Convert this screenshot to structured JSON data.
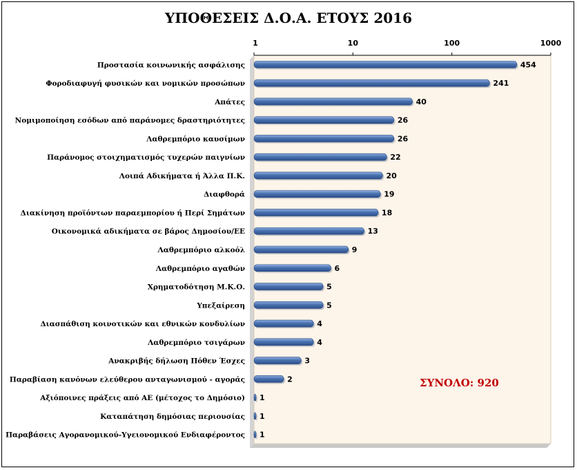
{
  "chart_data": {
    "type": "bar",
    "orientation": "horizontal",
    "title": "ΥΠΟΘΕΣΕΙΣ Δ.Ο.Α. ΕΤΟΥΣ 2016",
    "annotation": "ΣΥΝΟΛΟ: 920",
    "x_scale": "log",
    "xlim": [
      1,
      1000
    ],
    "x_ticks": [
      "1",
      "10",
      "100",
      "1000"
    ],
    "x_tick_values": [
      1,
      10,
      100,
      1000
    ],
    "xaxis_position": "top",
    "bar_color": "#4a72b0",
    "plot_background": "#fdf4ea",
    "annotation_color": "#c00000",
    "categories": [
      "Προστασία κοινωνικής ασφάλισης",
      "Φοροδιαφυγή φυσικών και νομικών προσώπων",
      "Απάτες",
      "Νομιμοποίηση εσόδων από παράνομες δραστηριότητες",
      "Λαθρεμπόριο καυσίμων",
      "Παράνομος στοιχηματισμός τυχερών παιγνίων",
      "Λοιπά Αδικήματα ή Άλλα Π.Κ.",
      "Διαφθορά",
      "Διακίνηση προϊόντων παραεμπορίου ή Περί Σημάτων",
      "Οικονομικά αδικήματα σε βάρος Δημοσίου/ΕΕ",
      "Λαθρεμπόριο αλκοόλ",
      "Λαθρεμπόριο αγαθών",
      "Χρηματοδότηση Μ.Κ.Ο.",
      "Υπεξαίρεση",
      "Διασπάθιση κοινοτικών και εθνικών κονδυλίων",
      "Λαθρεμπόριο τσιγάρων",
      "Ανακριβής δήλωση Πόθεν Έσχες",
      "Παραβίαση κανόνων ελεύθερου ανταγωνισμού - αγοράς",
      "Αξιόποινες πράξεις από ΑΕ (μέτοχος το Δημόσιο)",
      "Καταπάτηση δημόσιας περιουσίας",
      "Παραβάσεις Αγορανομικού-Υγειονομικού Ενδιαφέροντος"
    ],
    "values": [
      454,
      241,
      40,
      26,
      26,
      22,
      20,
      19,
      18,
      13,
      9,
      6,
      5,
      5,
      4,
      4,
      3,
      2,
      1,
      1,
      1
    ]
  }
}
